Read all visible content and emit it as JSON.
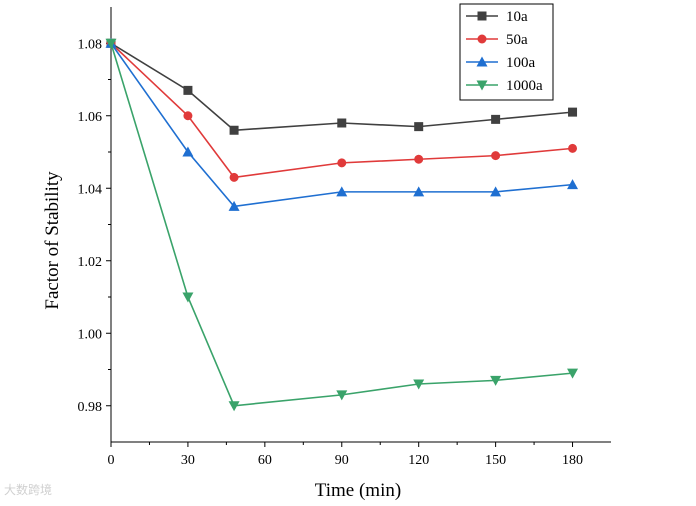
{
  "chart_data": {
    "type": "line",
    "title": "",
    "xlabel": "Time (min)",
    "ylabel": "Factor of Stability",
    "xlim": [
      0,
      195
    ],
    "ylim": [
      0.97,
      1.09
    ],
    "xticks": [
      0,
      30,
      60,
      90,
      120,
      150,
      180
    ],
    "xtick_labels": [
      "0",
      "30",
      "60",
      "90",
      "120",
      "150",
      "180"
    ],
    "yticks": [
      0.98,
      1.0,
      1.02,
      1.04,
      1.06,
      1.08
    ],
    "ytick_labels": [
      "0.98",
      "1.00",
      "1.02",
      "1.04",
      "1.06",
      "1.08"
    ],
    "grid": false,
    "legend_position": "top-right",
    "series": [
      {
        "name": "10a",
        "color": "#404040",
        "marker": "square",
        "x": [
          0,
          30,
          48,
          90,
          120,
          150,
          180
        ],
        "y": [
          1.08,
          1.067,
          1.056,
          1.058,
          1.057,
          1.059,
          1.061
        ]
      },
      {
        "name": "50a",
        "color": "#e03a3a",
        "marker": "circle",
        "x": [
          0,
          30,
          48,
          90,
          120,
          150,
          180
        ],
        "y": [
          1.08,
          1.06,
          1.043,
          1.047,
          1.048,
          1.049,
          1.051
        ]
      },
      {
        "name": "100a",
        "color": "#1f6fd1",
        "marker": "triangle-up",
        "x": [
          0,
          30,
          48,
          90,
          120,
          150,
          180
        ],
        "y": [
          1.08,
          1.05,
          1.035,
          1.039,
          1.039,
          1.039,
          1.041
        ]
      },
      {
        "name": "1000a",
        "color": "#3aa36a",
        "marker": "triangle-down",
        "x": [
          0,
          30,
          48,
          90,
          120,
          150,
          180
        ],
        "y": [
          1.08,
          1.01,
          0.98,
          0.983,
          0.986,
          0.987,
          0.989
        ]
      }
    ]
  },
  "watermark": {
    "text": "大数跨境"
  }
}
